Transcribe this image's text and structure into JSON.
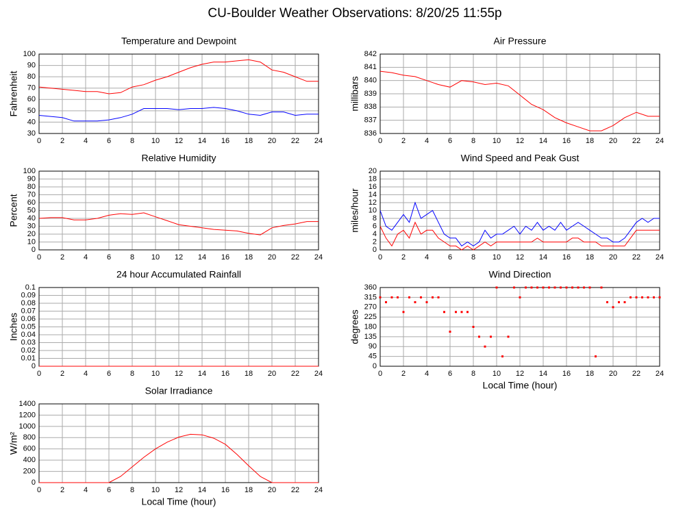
{
  "title": "CU-Boulder Weather Observations: 8/20/25 11:55p",
  "chart_data": [
    {
      "type": "line",
      "title": "Temperature and Dewpoint",
      "ylabel": "Fahrenheit",
      "x": [
        0,
        1,
        2,
        3,
        4,
        5,
        6,
        7,
        8,
        9,
        10,
        11,
        12,
        13,
        14,
        15,
        16,
        17,
        18,
        19,
        20,
        21,
        22,
        23,
        24
      ],
      "series": [
        {
          "color": "#ff0000",
          "values": [
            71,
            70,
            69,
            68,
            67,
            67,
            65,
            66,
            71,
            73,
            77,
            80,
            84,
            88,
            91,
            93,
            93,
            94,
            95,
            93,
            86,
            84,
            80,
            76,
            76
          ]
        },
        {
          "color": "#0000ff",
          "values": [
            46,
            45,
            44,
            41,
            41,
            41,
            42,
            44,
            47,
            52,
            52,
            52,
            51,
            52,
            52,
            53,
            52,
            50,
            47,
            46,
            49,
            49,
            46,
            47,
            47
          ]
        }
      ],
      "xlim": [
        0,
        24
      ],
      "xticks": [
        0,
        2,
        4,
        6,
        8,
        10,
        12,
        14,
        16,
        18,
        20,
        22,
        24
      ],
      "ylim": [
        30,
        100
      ],
      "yticks": [
        30,
        40,
        50,
        60,
        70,
        80,
        90,
        100
      ],
      "grid": true
    },
    {
      "type": "line",
      "title": "Air Pressure",
      "ylabel": "millibars",
      "x": [
        0,
        1,
        2,
        3,
        4,
        5,
        6,
        7,
        8,
        9,
        10,
        11,
        12,
        13,
        14,
        15,
        16,
        17,
        18,
        19,
        20,
        21,
        22,
        23,
        24
      ],
      "series": [
        {
          "color": "#ff0000",
          "values": [
            840.7,
            840.6,
            840.4,
            840.3,
            840.0,
            839.7,
            839.5,
            840.0,
            839.9,
            839.7,
            839.8,
            839.6,
            838.9,
            838.2,
            837.8,
            837.2,
            836.8,
            836.5,
            836.2,
            836.2,
            836.6,
            837.2,
            837.6,
            837.3,
            837.3
          ]
        }
      ],
      "xlim": [
        0,
        24
      ],
      "xticks": [
        0,
        2,
        4,
        6,
        8,
        10,
        12,
        14,
        16,
        18,
        20,
        22,
        24
      ],
      "ylim": [
        836,
        842
      ],
      "yticks": [
        836,
        837,
        838,
        839,
        840,
        841,
        842
      ],
      "grid": true
    },
    {
      "type": "line",
      "title": "Relative Humidity",
      "ylabel": "Percent",
      "x": [
        0,
        1,
        2,
        3,
        4,
        5,
        6,
        7,
        8,
        9,
        10,
        11,
        12,
        13,
        14,
        15,
        16,
        17,
        18,
        19,
        20,
        21,
        22,
        23,
        24
      ],
      "series": [
        {
          "color": "#ff0000",
          "values": [
            40,
            41,
            41,
            38,
            38,
            40,
            44,
            46,
            45,
            47,
            42,
            37,
            32,
            30,
            28,
            26,
            25,
            24,
            21,
            19,
            28,
            31,
            33,
            36,
            36
          ]
        }
      ],
      "xlim": [
        0,
        24
      ],
      "xticks": [
        0,
        2,
        4,
        6,
        8,
        10,
        12,
        14,
        16,
        18,
        20,
        22,
        24
      ],
      "ylim": [
        0,
        100
      ],
      "yticks": [
        0,
        10,
        20,
        30,
        40,
        50,
        60,
        70,
        80,
        90,
        100
      ],
      "grid": true
    },
    {
      "type": "line",
      "title": "Wind Speed and Peak Gust",
      "ylabel": "miles/hour",
      "x": [
        0,
        0.5,
        1,
        1.5,
        2,
        2.5,
        3,
        3.5,
        4,
        4.5,
        5,
        5.5,
        6,
        6.5,
        7,
        7.5,
        8,
        8.5,
        9,
        9.5,
        10,
        10.5,
        11,
        11.5,
        12,
        12.5,
        13,
        13.5,
        14,
        14.5,
        15,
        15.5,
        16,
        16.5,
        17,
        17.5,
        18,
        18.5,
        19,
        19.5,
        20,
        20.5,
        21,
        21.5,
        22,
        22.5,
        23,
        23.5,
        24
      ],
      "series": [
        {
          "color": "#0000ff",
          "values": [
            10,
            6,
            5,
            7,
            9,
            7,
            12,
            8,
            9,
            10,
            7,
            4,
            3,
            3,
            1,
            2,
            1,
            2,
            5,
            3,
            4,
            4,
            5,
            6,
            4,
            6,
            5,
            7,
            5,
            6,
            5,
            7,
            5,
            6,
            7,
            6,
            5,
            4,
            3,
            3,
            2,
            2,
            3,
            5,
            7,
            8,
            7,
            8,
            8
          ]
        },
        {
          "color": "#ff0000",
          "values": [
            6,
            3,
            1,
            4,
            5,
            3,
            7,
            4,
            5,
            5,
            3,
            2,
            1,
            1,
            0,
            1,
            0,
            1,
            2,
            1,
            2,
            2,
            2,
            2,
            2,
            2,
            2,
            3,
            2,
            2,
            2,
            2,
            2,
            3,
            3,
            2,
            2,
            2,
            1,
            1,
            1,
            1,
            1,
            3,
            5,
            5,
            5,
            5,
            5
          ]
        }
      ],
      "xlim": [
        0,
        24
      ],
      "xticks": [
        0,
        2,
        4,
        6,
        8,
        10,
        12,
        14,
        16,
        18,
        20,
        22,
        24
      ],
      "ylim": [
        0,
        20
      ],
      "yticks": [
        0,
        2,
        4,
        6,
        8,
        10,
        12,
        14,
        16,
        18,
        20
      ],
      "grid": true
    },
    {
      "type": "line",
      "title": "24 hour Accumulated Rainfall",
      "ylabel": "Inches",
      "x": [
        0,
        24
      ],
      "series": [
        {
          "color": "#ff0000",
          "values": [
            0,
            0
          ]
        }
      ],
      "xlim": [
        0,
        24
      ],
      "xticks": [
        0,
        2,
        4,
        6,
        8,
        10,
        12,
        14,
        16,
        18,
        20,
        22,
        24
      ],
      "ylim": [
        0,
        0.1
      ],
      "yticks": [
        0,
        0.01,
        0.02,
        0.03,
        0.04,
        0.05,
        0.06,
        0.07,
        0.08,
        0.09,
        0.1
      ],
      "grid": true
    },
    {
      "type": "scatter",
      "title": "Wind Direction",
      "ylabel": "degrees",
      "xlabel": "Local Time (hour)",
      "x": [
        0,
        0.5,
        1,
        1.5,
        2,
        2.5,
        3,
        3.5,
        4,
        4.5,
        5,
        5.5,
        6,
        6.5,
        7,
        7.5,
        8,
        8.5,
        9,
        9.5,
        10,
        10.5,
        11,
        11.5,
        12,
        12.5,
        13,
        13.5,
        14,
        14.5,
        15,
        15.5,
        16,
        16.5,
        17,
        17.5,
        18,
        18.5,
        19,
        19.5,
        20,
        20.5,
        21,
        21.5,
        22,
        22.5,
        23,
        23.5,
        24
      ],
      "series": [
        {
          "color": "#ff0000",
          "values": [
            315,
            293,
            315,
            315,
            248,
            315,
            293,
            315,
            293,
            315,
            315,
            248,
            158,
            248,
            248,
            248,
            180,
            135,
            90,
            135,
            360,
            45,
            135,
            360,
            315,
            360,
            360,
            360,
            360,
            360,
            360,
            360,
            360,
            360,
            360,
            360,
            360,
            45,
            360,
            293,
            270,
            293,
            293,
            315,
            315,
            315,
            315,
            315,
            315
          ]
        }
      ],
      "xlim": [
        0,
        24
      ],
      "xticks": [
        0,
        2,
        4,
        6,
        8,
        10,
        12,
        14,
        16,
        18,
        20,
        22,
        24
      ],
      "ylim": [
        0,
        360
      ],
      "yticks": [
        0,
        45,
        90,
        135,
        180,
        225,
        270,
        315,
        360
      ],
      "grid": true
    },
    {
      "type": "line",
      "title": "Solar Irradiance",
      "ylabel": "W/m²",
      "xlabel": "Local Time (hour)",
      "x": [
        0,
        1,
        2,
        3,
        4,
        5,
        6,
        7,
        8,
        9,
        10,
        11,
        12,
        13,
        14,
        15,
        16,
        17,
        18,
        19,
        20,
        21,
        22,
        23,
        24
      ],
      "series": [
        {
          "color": "#ff0000",
          "values": [
            0,
            0,
            0,
            0,
            0,
            0,
            0,
            110,
            280,
            450,
            600,
            720,
            810,
            860,
            850,
            790,
            680,
            500,
            300,
            110,
            0,
            0,
            0,
            0,
            0
          ]
        }
      ],
      "xlim": [
        0,
        24
      ],
      "xticks": [
        0,
        2,
        4,
        6,
        8,
        10,
        12,
        14,
        16,
        18,
        20,
        22,
        24
      ],
      "ylim": [
        0,
        1400
      ],
      "yticks": [
        0,
        200,
        400,
        600,
        800,
        1000,
        1200,
        1400
      ],
      "grid": true
    }
  ]
}
